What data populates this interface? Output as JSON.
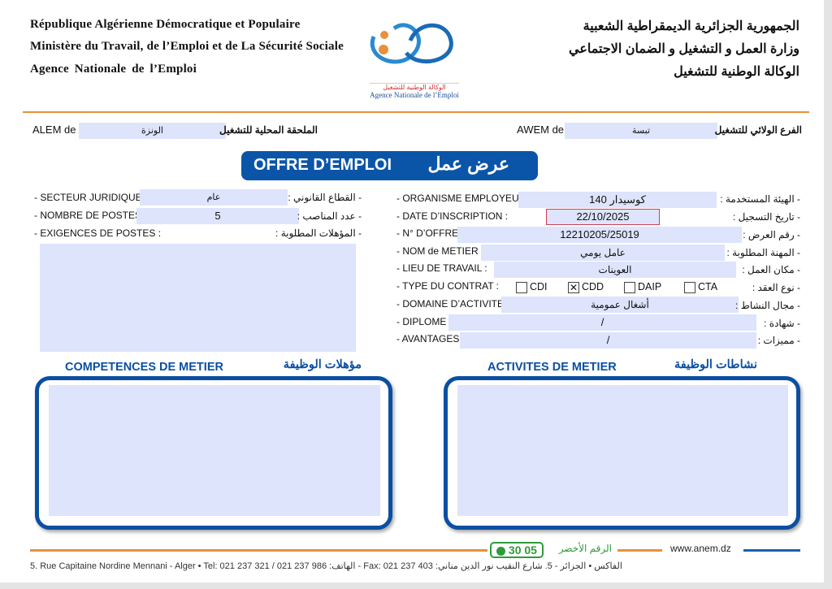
{
  "header": {
    "left_lines": [
      "République Algérienne Démocratique et Populaire",
      "Ministère du Travail, de l’Emploi et de La Sécurité Sociale",
      "Agence   Nationale   de   l’Emploi"
    ],
    "right_lines": [
      "الجمهورية الجزائرية الديمقراطية الشعبية",
      "وزارة العمل و التشغيل و الضمان الاجتماعي",
      "الوكالة الوطنية للتشغيل"
    ],
    "logo_text_ar": "الوكالة الوطنية للتشغيل",
    "logo_text_fr": "Agence Nationale de l’Emploi"
  },
  "branch": {
    "alem_label": "ALEM de",
    "alem_value": "الونزة",
    "alem_label_ar": "الملحقة المحلية للتشغيل",
    "awem_label": "AWEM de",
    "awem_value": "تبسة",
    "awem_label_ar": "الفرع الولائي للتشغيل"
  },
  "title": {
    "fr": "OFFRE D’EMPLOI",
    "ar": "عرض عمل"
  },
  "left_fields": [
    {
      "label": "- SECTEUR JURIDIQUE :",
      "value": "عام",
      "label_ar": "- القطاع القانوني :"
    },
    {
      "label": "- NOMBRE DE POSTES :",
      "value": "5",
      "label_ar": "- عدد المناصب :"
    },
    {
      "label": "- EXIGENCES DE POSTES :",
      "value": "",
      "label_ar": "- المؤهلات المطلوبة :"
    }
  ],
  "right_fields": [
    {
      "label": "- ORGANISME EMPLOYEUR :",
      "value": "كوسيدار 140",
      "label_ar": "- الهيئة المستخدمة :"
    },
    {
      "label": "- DATE D’INSCRIPTION :",
      "value": "22/10/2025",
      "label_ar": "- تاريخ التسجيل :"
    },
    {
      "label": "- N° D’OFFRE :",
      "value": "12210205/25019",
      "label_ar": "- رقم العرض :"
    },
    {
      "label": "- NOM de METIER :",
      "value": "عامل يومي",
      "label_ar": "- المهنة المطلوبة :"
    },
    {
      "label": "- LIEU DE TRAVAIL :",
      "value": "العوينات",
      "label_ar": "- مكان العمل :"
    },
    {
      "label": "- TYPE DU CONTRAT :",
      "value": "",
      "label_ar": "- نوع العقد :"
    },
    {
      "label": "- DOMAINE D’ACTIVITE :",
      "value": "أشغال عمومية",
      "label_ar": "- مجال النشاط :"
    },
    {
      "label": "- DIPLOME :",
      "value": "/",
      "label_ar": "- شهادة :"
    },
    {
      "label": "- AVANTAGES :",
      "value": "/",
      "label_ar": "- مميزات :"
    }
  ],
  "contract_types": [
    {
      "label": "CDI",
      "checked": false,
      "mark": ""
    },
    {
      "label": "CDD",
      "checked": true,
      "mark": "✕"
    },
    {
      "label": "DAIP",
      "checked": false,
      "mark": ""
    },
    {
      "label": "CTA",
      "checked": false,
      "mark": ""
    }
  ],
  "sections": {
    "competences_fr": "COMPETENCES DE METIER",
    "competences_ar": "مؤهلات الوظيفة",
    "activites_fr": "ACTIVITES DE METIER",
    "activites_ar": "نشاطات الوظيفة"
  },
  "footer": {
    "website": "www.anem.dz",
    "green_label": "الرقم الأخضر",
    "green_number": "30 05",
    "address": "5. Rue  Capitaine  Nordine  Mennani  -  Alger • Tel: 021 237 321 / 021 237 986 :الهاتف - Fax: 021 237 403 :الفاكس • الجزائر - 5. شارع النقيب نور الدين مناني"
  },
  "colors": {
    "blue": "#0b4fa3",
    "orange": "#e8913a",
    "field": "#dde4fb",
    "green": "#2e9b3a",
    "date_border": "#d04050"
  }
}
